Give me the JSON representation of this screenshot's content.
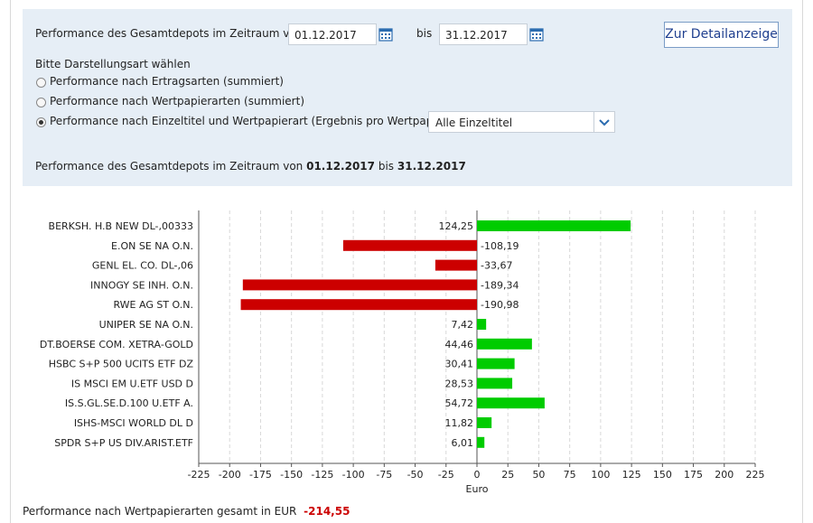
{
  "filter": {
    "period_label": "Performance des Gesamtdepots im Zeitraum von",
    "date_from": "01.12.2017",
    "to_label": "bis",
    "date_to": "31.12.2017",
    "detail_button": "Zur Detailanzeige",
    "mode_prompt": "Bitte Darstellungsart wählen",
    "modes": [
      "Performance nach Ertragsarten (summiert)",
      "Performance nach Wertpapierarten (summiert)",
      "Performance nach Einzeltitel und Wertpapierart (Ergebnis pro Wertpapier)"
    ],
    "selected_mode_index": 2,
    "select_value": "Alle Einzeltitel"
  },
  "summary": {
    "prefix": "Performance des Gesamtdepots im Zeitraum von",
    "from": "01.12.2017",
    "mid": "bis",
    "to": "31.12.2017"
  },
  "colors": {
    "positive": "#00cc00",
    "negative": "#cc0000",
    "total": "#cc0000",
    "button_text": "#1f3f8f"
  },
  "chart_data": {
    "type": "bar",
    "orientation": "horizontal",
    "xlabel": "Euro",
    "xlim": [
      -225,
      225
    ],
    "xticks": [
      -225,
      -200,
      -175,
      -150,
      -125,
      -100,
      -75,
      -50,
      -25,
      0,
      25,
      50,
      75,
      100,
      125,
      150,
      175,
      200,
      225
    ],
    "grid": "vertical dashed",
    "categories": [
      "BERKSH. H.B NEW DL-,00333",
      "E.ON SE NA O.N.",
      "GENL EL. CO.     DL-,06",
      "INNOGY SE  INH. O.N.",
      "RWE AG ST O.N.",
      "UNIPER SE  NA O.N.",
      "DT.BOERSE COM. XETRA-GOLD",
      "HSBC S+P 500 UCITS ETF DZ",
      "IS MSCI EM U.ETF USD D",
      "IS.S.GL.SE.D.100 U.ETF A.",
      "ISHS-MSCI WORLD DL D",
      "SPDR S+P US DIV.ARIST.ETF"
    ],
    "values": [
      124.25,
      -108.19,
      -33.67,
      -189.34,
      -190.98,
      7.42,
      44.46,
      30.41,
      28.53,
      54.72,
      11.82,
      6.01
    ],
    "value_labels": [
      "124,25",
      "-108,19",
      "-33,67",
      "-189,34",
      "-190,98",
      "7,42",
      "44,46",
      "30,41",
      "28,53",
      "54,72",
      "11,82",
      "6,01"
    ]
  },
  "total": {
    "label": "Performance nach Wertpapierarten gesamt in EUR",
    "value": "-214,55"
  }
}
